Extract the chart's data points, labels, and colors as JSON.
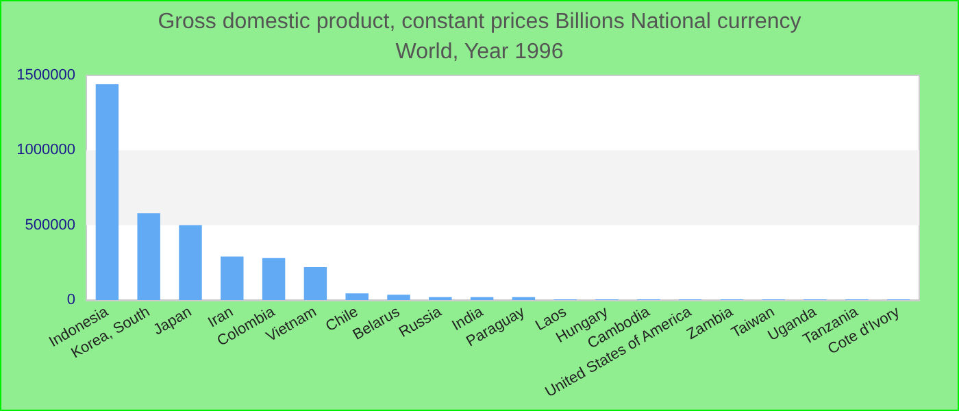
{
  "chart_data": {
    "type": "bar",
    "title": "Gross domestic product, constant prices Billions National currency",
    "subtitle": "World, Year 1996",
    "categories": [
      "Indonesia",
      "Korea, South",
      "Japan",
      "Iran",
      "Colombia",
      "Vietnam",
      "Chile",
      "Belarus",
      "Russia",
      "India",
      "Paraguay",
      "Laos",
      "Hungary",
      "Cambodia",
      "United States of America",
      "Zambia",
      "Taiwan",
      "Uganda",
      "Tanzania",
      "Cote d'Ivory"
    ],
    "values": [
      1440000,
      580000,
      500000,
      290000,
      280000,
      220000,
      45000,
      35000,
      20000,
      20000,
      20000,
      5000,
      5000,
      5000,
      5000,
      5000,
      5000,
      5000,
      5000,
      5000
    ],
    "color": "#63aaf5",
    "ylim": [
      0,
      1500000
    ],
    "yticks": [
      0,
      500000,
      1000000,
      1500000
    ],
    "bands": [
      {
        "axis": "y",
        "from": 500000,
        "to": 1000000,
        "color": "#f3f3f3"
      }
    ]
  }
}
